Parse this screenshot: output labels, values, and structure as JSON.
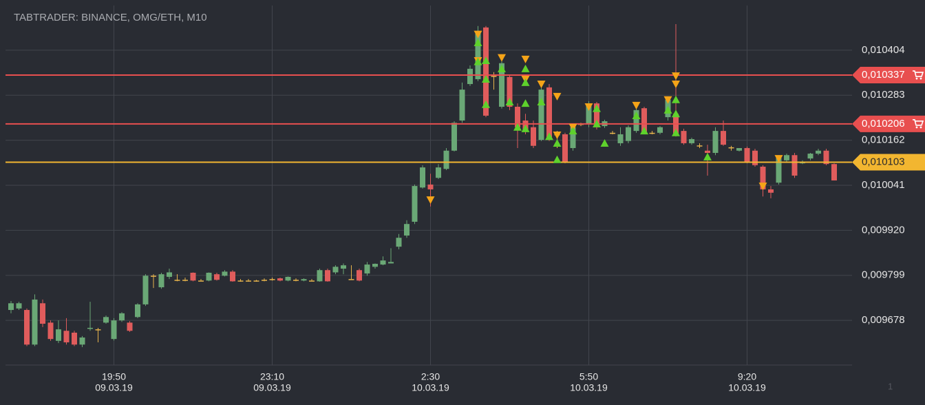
{
  "chart_data": {
    "type": "candlestick",
    "title": "TABTRADER: BINANCE, OMG/ETH, M10",
    "footer_text": "1",
    "categories": [
      null,
      null,
      null,
      null,
      null,
      null,
      null,
      null,
      null,
      null,
      null,
      null,
      null,
      "19:50",
      null,
      null,
      null,
      null,
      null,
      null,
      null,
      null,
      null,
      null,
      null,
      null,
      null,
      null,
      null,
      null,
      null,
      null,
      null,
      "23:10",
      null,
      null,
      null,
      null,
      null,
      null,
      null,
      null,
      null,
      null,
      null,
      null,
      null,
      null,
      null,
      null,
      null,
      null,
      null,
      "2:30",
      null,
      null,
      null,
      null,
      null,
      null,
      null,
      null,
      null,
      null,
      null,
      null,
      null,
      null,
      null,
      null,
      null,
      null,
      null,
      "5:50",
      null,
      null,
      null,
      null,
      null,
      null,
      null,
      null,
      null,
      null,
      null,
      null,
      null,
      null,
      null,
      null,
      null,
      null,
      null,
      "9:20",
      null,
      null,
      null,
      null,
      null,
      null,
      null,
      null,
      null,
      null,
      null
    ],
    "category_dates": [
      null,
      null,
      null,
      null,
      null,
      null,
      null,
      null,
      null,
      null,
      null,
      null,
      null,
      "09.03.19",
      null,
      null,
      null,
      null,
      null,
      null,
      null,
      null,
      null,
      null,
      null,
      null,
      null,
      null,
      null,
      null,
      null,
      null,
      null,
      "09.03.19",
      null,
      null,
      null,
      null,
      null,
      null,
      null,
      null,
      null,
      null,
      null,
      null,
      null,
      null,
      null,
      null,
      null,
      null,
      null,
      "10.03.19",
      null,
      null,
      null,
      null,
      null,
      null,
      null,
      null,
      null,
      null,
      null,
      null,
      null,
      null,
      null,
      null,
      null,
      null,
      null,
      "10.03.19",
      null,
      null,
      null,
      null,
      null,
      null,
      null,
      null,
      null,
      null,
      null,
      null,
      null,
      null,
      null,
      null,
      null,
      null,
      null,
      "10.03.19",
      null,
      null,
      null,
      null,
      null,
      null,
      null,
      null,
      null,
      null,
      null
    ],
    "open": [
      0.009706,
      0.00971,
      0.009706,
      0.009613,
      0.009724,
      0.009672,
      0.009623,
      0.00965,
      0.009645,
      0.009613,
      0.009656,
      0.009654,
      0.009672,
      0.009628,
      0.009678,
      0.009672,
      0.009687,
      0.009721,
      0.009798,
      0.009767,
      0.009795,
      0.009787,
      0.009787,
      0.009806,
      0.009785,
      0.009785,
      0.009802,
      0.009798,
      0.009809,
      0.009785,
      0.009785,
      0.009785,
      0.009787,
      0.009789,
      0.009791,
      0.009785,
      0.009787,
      0.009785,
      0.009785,
      0.009783,
      0.009813,
      0.009807,
      0.009817,
      0.009789,
      0.009813,
      0.009804,
      0.009822,
      0.009828,
      0.009831,
      0.009876,
      0.009906,
      0.009943,
      0.010035,
      0.010043,
      0.010061,
      0.010085,
      0.010134,
      0.010215,
      0.010313,
      0.010326,
      0.010465,
      0.010335,
      0.010252,
      0.010332,
      0.010252,
      0.010215,
      0.010197,
      0.010163,
      0.010304,
      0.010178,
      0.010178,
      0.010141,
      0.010206,
      0.010206,
      0.010261,
      0.0102,
      0.010182,
      0.010154,
      0.01016,
      0.010187,
      0.010248,
      0.010182,
      0.010182,
      0.010224,
      0.010233,
      0.010187,
      0.010154,
      0.010148,
      0.010134,
      0.010128,
      0.010187,
      0.010143,
      0.010134,
      0.010141,
      0.010134,
      0.010091,
      0.01003,
      0.010048,
      0.010108,
      0.010122,
      0.0101,
      0.010113,
      0.010126,
      0.010134,
      0.010098
    ],
    "high": [
      0.00973,
      0.009728,
      0.00971,
      0.009748,
      0.009734,
      0.009678,
      0.009678,
      0.009684,
      0.00965,
      0.009636,
      0.009728,
      0.009658,
      0.009691,
      0.009684,
      0.0097,
      0.009676,
      0.009724,
      0.009802,
      0.009802,
      0.009806,
      0.009817,
      0.009802,
      0.009793,
      0.009807,
      0.009789,
      0.009807,
      0.009806,
      0.009813,
      0.009813,
      0.009789,
      0.009789,
      0.009787,
      0.009791,
      0.009793,
      0.009793,
      0.009796,
      0.009791,
      0.009791,
      0.009789,
      0.009817,
      0.009817,
      0.009826,
      0.009831,
      0.009826,
      0.009817,
      0.009835,
      0.009831,
      0.00985,
      0.009872,
      0.00991,
      0.009947,
      0.010043,
      0.010095,
      0.010072,
      0.010098,
      0.010141,
      0.010213,
      0.010317,
      0.010363,
      0.010469,
      0.010469,
      0.010345,
      0.010376,
      0.010339,
      0.010261,
      0.010233,
      0.010215,
      0.010308,
      0.010313,
      0.010187,
      0.010182,
      0.010206,
      0.010209,
      0.010267,
      0.010265,
      0.010217,
      0.010187,
      0.010197,
      0.010202,
      0.010252,
      0.010252,
      0.010187,
      0.0102,
      0.01028,
      0.010474,
      0.010193,
      0.010169,
      0.010154,
      0.01015,
      0.010197,
      0.010215,
      0.010147,
      0.010141,
      0.010145,
      0.010139,
      0.010095,
      0.010039,
      0.010122,
      0.010126,
      0.010128,
      0.010108,
      0.010128,
      0.010139,
      0.010139,
      0.0101
    ],
    "low": [
      0.009697,
      0.009706,
      0.009609,
      0.009609,
      0.00966,
      0.009623,
      0.009617,
      0.009613,
      0.009609,
      0.009606,
      0.00965,
      0.009619,
      0.009669,
      0.009624,
      0.009674,
      0.009647,
      0.009684,
      0.009717,
      0.009765,
      0.009763,
      0.009789,
      0.009783,
      0.009783,
      0.009783,
      0.009783,
      0.009783,
      0.009785,
      0.009796,
      0.009782,
      0.009782,
      0.009782,
      0.009782,
      0.009783,
      0.009785,
      0.009783,
      0.009783,
      0.009783,
      0.009783,
      0.009783,
      0.009782,
      0.009782,
      0.009802,
      0.009802,
      0.009789,
      0.009783,
      0.009798,
      0.009817,
      0.009826,
      0.009831,
      0.009869,
      0.0099,
      0.009937,
      0.010032,
      0.009984,
      0.010058,
      0.010082,
      0.010132,
      0.010209,
      0.010308,
      0.010321,
      0.010224,
      0.010298,
      0.010247,
      0.010243,
      0.010141,
      0.010178,
      0.010141,
      0.01016,
      0.01016,
      0.010141,
      0.0101,
      0.010134,
      0.0102,
      0.010197,
      0.010191,
      0.010195,
      0.010178,
      0.010147,
      0.010154,
      0.010182,
      0.010178,
      0.010178,
      0.010178,
      0.010215,
      0.010172,
      0.01015,
      0.01015,
      0.010141,
      0.010067,
      0.010122,
      0.010147,
      0.010134,
      0.010132,
      0.0101,
      0.010091,
      0.010011,
      0.010006,
      0.010043,
      0.010104,
      0.010061,
      0.010098,
      0.010108,
      0.010122,
      0.010095,
      0.010054
    ],
    "close": [
      0.009724,
      0.009724,
      0.009613,
      0.009734,
      0.009669,
      0.009628,
      0.009654,
      0.009619,
      0.009613,
      0.009632,
      0.009658,
      0.009654,
      0.009687,
      0.009678,
      0.009697,
      0.00965,
      0.009721,
      0.009798,
      0.009798,
      0.009802,
      0.009807,
      0.009787,
      0.009787,
      0.009785,
      0.009785,
      0.009806,
      0.009787,
      0.009809,
      0.009783,
      0.009785,
      0.009785,
      0.009785,
      0.009787,
      0.009789,
      0.009785,
      0.009795,
      0.009787,
      0.009789,
      0.009785,
      0.009813,
      0.009783,
      0.009822,
      0.009826,
      0.009789,
      0.009785,
      0.009828,
      0.00983,
      0.009839,
      0.009835,
      0.0099,
      0.009937,
      0.010039,
      0.010089,
      0.01003,
      0.010089,
      0.010134,
      0.010209,
      0.010298,
      0.010354,
      0.010456,
      0.010228,
      0.010335,
      0.010369,
      0.010252,
      0.010197,
      0.010191,
      0.010147,
      0.010298,
      0.010169,
      0.010178,
      0.010104,
      0.010197,
      0.010206,
      0.010261,
      0.010197,
      0.010213,
      0.010182,
      0.010178,
      0.010197,
      0.010243,
      0.010182,
      0.010182,
      0.010197,
      0.010271,
      0.010178,
      0.010154,
      0.010165,
      0.010148,
      0.010128,
      0.010187,
      0.01015,
      0.010143,
      0.010141,
      0.010104,
      0.010095,
      0.01003,
      0.010021,
      0.010117,
      0.010122,
      0.010067,
      0.010104,
      0.010126,
      0.010134,
      0.010098,
      0.010054
    ],
    "up_color": "#6aa876",
    "down_color": "#e05c5c",
    "doji_color": "#e8b44c",
    "ylim": [
      0.009558,
      0.010524
    ],
    "yticks": [
      {
        "value": 0.009678,
        "label": "0,009678"
      },
      {
        "value": 0.009799,
        "label": "0,009799"
      },
      {
        "value": 0.00992,
        "label": "0,009920"
      },
      {
        "value": 0.010041,
        "label": "0,010041"
      },
      {
        "value": 0.010162,
        "label": "0,010162"
      },
      {
        "value": 0.010283,
        "label": "0,010283"
      },
      {
        "value": 0.010404,
        "label": "0,010404"
      }
    ],
    "grid": true,
    "price_lines": [
      {
        "value": 0.010337,
        "label": "0,010337",
        "color": "#e84f4f",
        "cart_icon": true
      },
      {
        "value": 0.010206,
        "label": "0,010206",
        "color": "#e84f4f",
        "cart_icon": true
      },
      {
        "value": 0.010103,
        "label": "0,010103",
        "color": "#f2b630",
        "cart_icon": false
      }
    ],
    "up_signals": {
      "color": "#5ed12c",
      "points": [
        [
          59,
          0.010424
        ],
        [
          59,
          0.010373
        ],
        [
          60,
          0.010376
        ],
        [
          60,
          0.010326
        ],
        [
          60,
          0.010258
        ],
        [
          62,
          0.010354
        ],
        [
          63,
          0.010265
        ],
        [
          64,
          0.010197
        ],
        [
          65,
          0.010354
        ],
        [
          65,
          0.010317
        ],
        [
          65,
          0.010261
        ],
        [
          65,
          0.010193
        ],
        [
          67,
          0.010265
        ],
        [
          68,
          0.010172
        ],
        [
          69,
          0.010154
        ],
        [
          69,
          0.01011
        ],
        [
          71,
          0.010187
        ],
        [
          74,
          0.010247
        ],
        [
          74,
          0.010206
        ],
        [
          75,
          0.010154
        ],
        [
          79,
          0.010228
        ],
        [
          80,
          0.010187
        ],
        [
          83,
          0.010243
        ],
        [
          84,
          0.010271
        ],
        [
          84,
          0.010233
        ],
        [
          84,
          0.010182
        ],
        [
          88,
          0.010117
        ]
      ]
    },
    "down_signals": {
      "color": "#f5a418",
      "points": [
        [
          53,
          0.010002
        ],
        [
          59,
          0.010447
        ],
        [
          59,
          0.010376
        ],
        [
          62,
          0.010384
        ],
        [
          65,
          0.01038
        ],
        [
          65,
          0.010326
        ],
        [
          67,
          0.010313
        ],
        [
          69,
          0.01028
        ],
        [
          69,
          0.010176
        ],
        [
          71,
          0.010197
        ],
        [
          73,
          0.010252
        ],
        [
          79,
          0.010256
        ],
        [
          83,
          0.010271
        ],
        [
          84,
          0.010335
        ],
        [
          84,
          0.010313
        ],
        [
          95,
          0.010039
        ],
        [
          97,
          0.010113
        ]
      ]
    }
  }
}
